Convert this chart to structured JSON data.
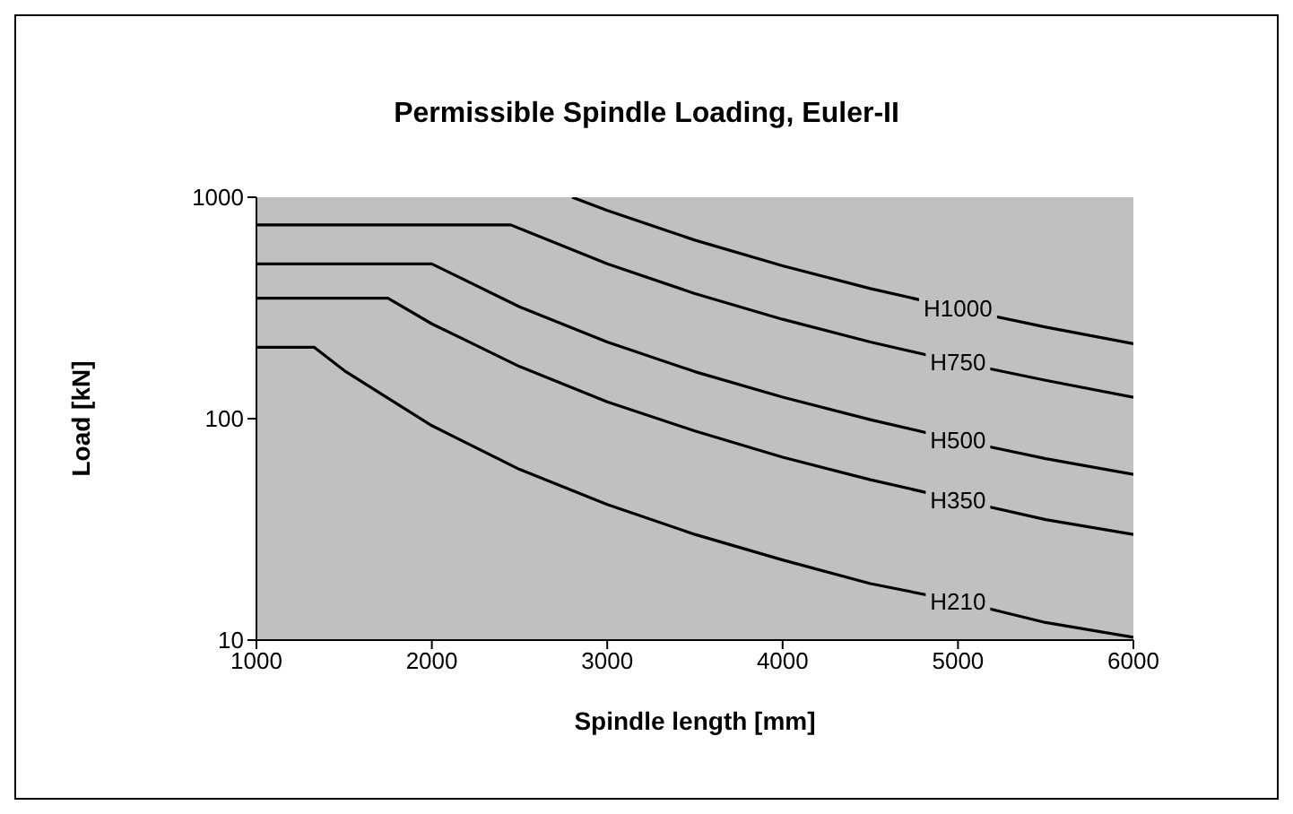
{
  "chart_data": {
    "type": "line",
    "title": "Permissible Spindle Loading, Euler-II",
    "xlabel": "Spindle length [mm]",
    "ylabel": "Load [kN]",
    "log": "y",
    "xlim": [
      1000,
      6000
    ],
    "xticks": [
      1000,
      2000,
      3000,
      4000,
      5000,
      6000
    ],
    "ylim": [
      10,
      1000
    ],
    "yticks": [
      10,
      100,
      1000
    ],
    "grid": false,
    "legend": false,
    "marker": "none",
    "line_style": "solid",
    "series": [
      {
        "name": "H1000",
        "color": "#000000",
        "x": [
          2800,
          3000,
          3500,
          4000,
          4500,
          5000,
          5500,
          6000
        ],
        "values": [
          1000,
          871,
          640,
          490,
          387,
          314,
          259,
          218
        ]
      },
      {
        "name": "H750",
        "color": "#000000",
        "x": [
          1000,
          2450,
          3000,
          3500,
          4000,
          4500,
          5000,
          5500,
          6000
        ],
        "values": [
          750,
          750,
          500,
          367,
          281,
          222,
          180,
          149,
          125
        ]
      },
      {
        "name": "H500",
        "color": "#000000",
        "x": [
          1000,
          2000,
          2500,
          3000,
          3500,
          4000,
          4500,
          5000,
          5500,
          6000
        ],
        "values": [
          500,
          500,
          320,
          222,
          163,
          125,
          99,
          80,
          66,
          56
        ]
      },
      {
        "name": "H350",
        "color": "#000000",
        "x": [
          1000,
          1750,
          2000,
          2500,
          3000,
          3500,
          4000,
          4500,
          5000,
          5500,
          6000
        ],
        "values": [
          350,
          350,
          268,
          172,
          119,
          88,
          67,
          53,
          43,
          35,
          30
        ]
      },
      {
        "name": "H210",
        "color": "#000000",
        "x": [
          1000,
          1330,
          1500,
          2000,
          2500,
          3000,
          3500,
          4000,
          4500,
          5000,
          5500,
          6000
        ],
        "values": [
          210,
          210,
          165,
          93,
          59,
          41,
          30,
          23,
          18,
          15,
          12,
          10.3
        ]
      }
    ]
  }
}
